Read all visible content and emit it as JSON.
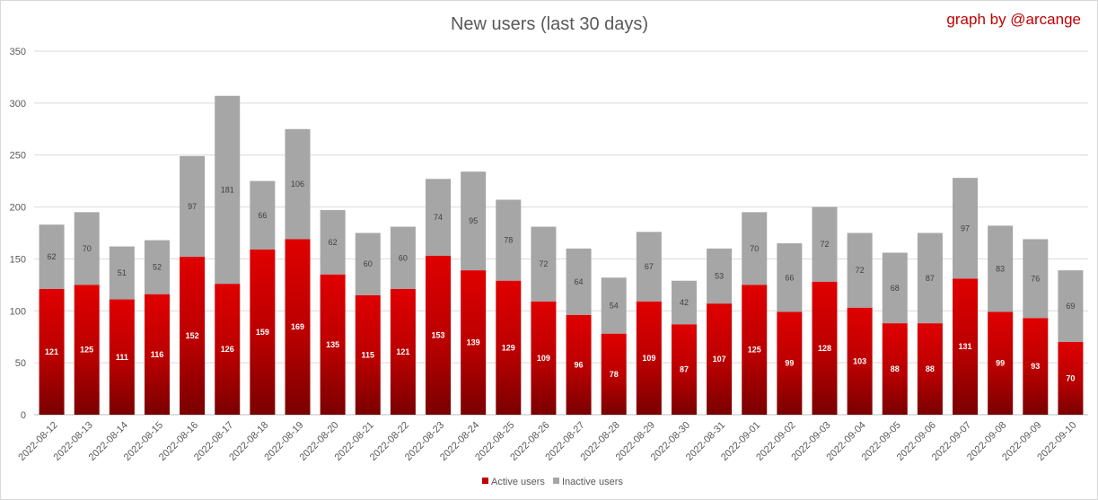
{
  "chart_data": {
    "type": "bar",
    "stacked": true,
    "title": "New users (last 30 days)",
    "credit": "graph by @arcange",
    "categories": [
      "2022-08-12",
      "2022-08-13",
      "2022-08-14",
      "2022-08-15",
      "2022-08-16",
      "2022-08-17",
      "2022-08-18",
      "2022-08-19",
      "2022-08-20",
      "2022-08-21",
      "2022-08-22",
      "2022-08-23",
      "2022-08-24",
      "2022-08-25",
      "2022-08-26",
      "2022-08-27",
      "2022-08-28",
      "2022-08-29",
      "2022-08-30",
      "2022-08-31",
      "2022-09-01",
      "2022-09-02",
      "2022-09-03",
      "2022-09-04",
      "2022-09-05",
      "2022-09-06",
      "2022-09-07",
      "2022-09-08",
      "2022-09-09",
      "2022-09-10"
    ],
    "series": [
      {
        "name": "Active users",
        "color": "#c00000",
        "values": [
          121,
          125,
          111,
          116,
          152,
          126,
          159,
          169,
          135,
          115,
          121,
          153,
          139,
          129,
          109,
          96,
          78,
          109,
          87,
          107,
          125,
          99,
          128,
          103,
          88,
          88,
          131,
          99,
          93,
          70
        ]
      },
      {
        "name": "Inactive users",
        "color": "#a6a6a6",
        "values": [
          62,
          70,
          51,
          52,
          97,
          181,
          66,
          106,
          62,
          60,
          60,
          74,
          95,
          78,
          72,
          64,
          54,
          67,
          42,
          53,
          70,
          66,
          72,
          72,
          68,
          87,
          97,
          83,
          76,
          69
        ]
      }
    ],
    "ylim": [
      0,
      350
    ],
    "yticks": [
      0,
      50,
      100,
      150,
      200,
      250,
      300,
      350
    ],
    "grid": true,
    "legend": "bottom",
    "xlabel": "",
    "ylabel": ""
  }
}
